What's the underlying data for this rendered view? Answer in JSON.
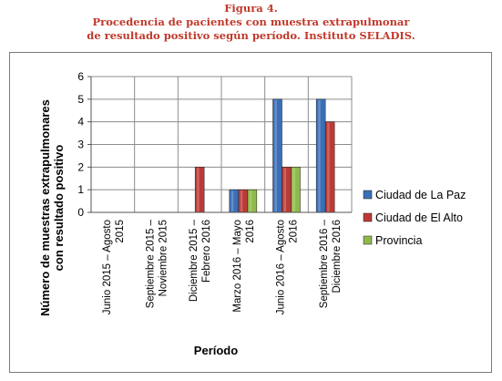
{
  "figure": {
    "number": "Figura 4.",
    "title_line1": "Procedencia de pacientes con muestra extrapulmonar",
    "title_line2": "de resultado positivo según período. Instituto SELADIS."
  },
  "chart_data": {
    "type": "bar",
    "categories": [
      [
        "Junio 2015 – Agosto",
        "2015"
      ],
      [
        "Septiembre 2015 –",
        "Noviembre 2015"
      ],
      [
        "Diciembre 2015 –",
        "Febrero 2016"
      ],
      [
        "Marzo 2016 – Mayo",
        "2016"
      ],
      [
        "Junio 2016 – Agosto",
        "2016"
      ],
      [
        "Septiembre 2016 –",
        "Diciembre 2016"
      ]
    ],
    "series": [
      {
        "name": "Ciudad de La Paz",
        "color": "#3a6fb7",
        "values": [
          0,
          0,
          0,
          1,
          5,
          5
        ]
      },
      {
        "name": "Ciudad de El Alto",
        "color": "#bc3a36",
        "values": [
          0,
          0,
          2,
          1,
          2,
          4
        ]
      },
      {
        "name": "Provincia",
        "color": "#8fb94a",
        "values": [
          0,
          0,
          0,
          1,
          2,
          0
        ]
      }
    ],
    "xlabel": "Período",
    "ylabel_line1": "Número de muestras extrapulmonares",
    "ylabel_line2": "con resultado positivo",
    "ylim": [
      0,
      6
    ],
    "yticks": [
      0,
      1,
      2,
      3,
      4,
      5,
      6
    ],
    "grid": true,
    "legend_position": "right"
  }
}
